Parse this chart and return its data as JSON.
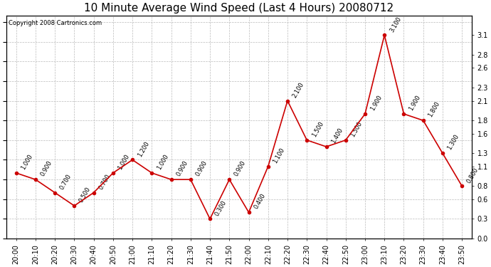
{
  "title": "10 Minute Average Wind Speed (Last 4 Hours) 20080712",
  "copyright": "Copyright 2008 Cartronics.com",
  "x_labels": [
    "20:00",
    "20:10",
    "20:20",
    "20:30",
    "20:40",
    "20:50",
    "21:00",
    "21:10",
    "21:20",
    "21:30",
    "21:40",
    "21:50",
    "22:00",
    "22:10",
    "22:20",
    "22:30",
    "22:40",
    "22:50",
    "23:00",
    "23:10",
    "23:20",
    "23:30",
    "23:40",
    "23:50"
  ],
  "y_values": [
    1.0,
    0.9,
    0.7,
    0.5,
    0.7,
    1.0,
    1.2,
    1.0,
    0.9,
    0.9,
    0.3,
    0.9,
    0.4,
    1.1,
    2.1,
    1.5,
    1.4,
    1.5,
    1.9,
    3.1,
    1.9,
    1.8,
    1.3,
    0.8
  ],
  "point_labels": [
    "1.000",
    "0.900",
    "0.700",
    "0.500",
    "0.700",
    "1.000",
    "1.200",
    "1.000",
    "0.900",
    "0.900",
    "0.300",
    "0.900",
    "0.400",
    "1.100",
    "2.100",
    "1.500",
    "1.400",
    "1.500",
    "1.900",
    "3.100",
    "1.900",
    "1.800",
    "1.300",
    "0.800"
  ],
  "line_color": "#cc0000",
  "marker_color": "#cc0000",
  "bg_color": "#ffffff",
  "plot_bg_color": "#ffffff",
  "grid_color": "#bbbbbb",
  "ylim": [
    0.0,
    3.4
  ],
  "yticks_right": [
    0.0,
    0.3,
    0.6,
    0.8,
    1.1,
    1.3,
    1.6,
    1.8,
    2.1,
    2.3,
    2.6,
    2.8,
    3.1
  ],
  "title_fontsize": 11,
  "annot_fontsize": 6,
  "tick_fontsize": 7
}
